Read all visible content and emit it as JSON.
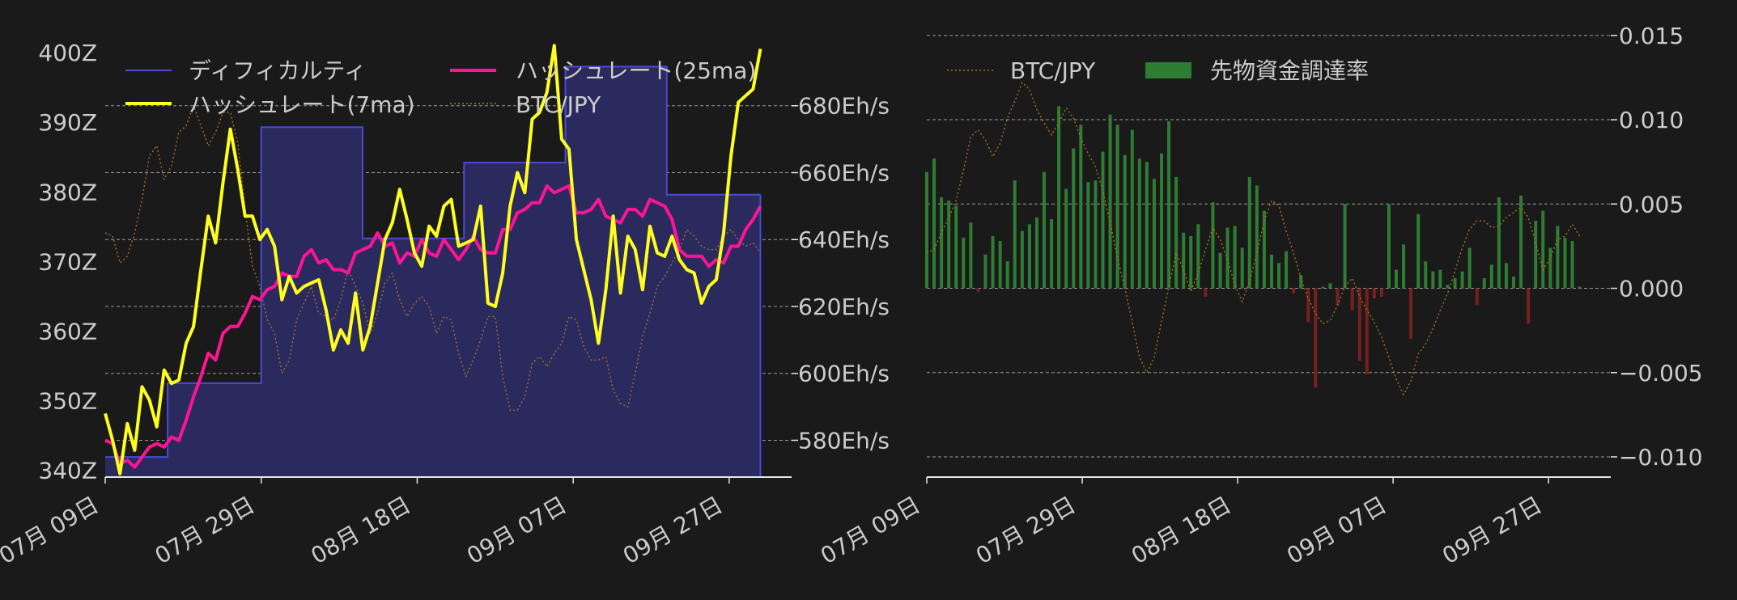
{
  "colors": {
    "background": "#1a1a1a",
    "text": "#cccccc",
    "difficulty_fill": "#2a2a5e",
    "difficulty_line": "#4a4ad8",
    "hashrate_7ma": "#ffff1f",
    "hashrate_25ma": "#ff1493",
    "btc_jpy": "#a87420",
    "funding_positive": "#2e7d32",
    "funding_negative": "#7a1f1f",
    "grid": "#bbbbbb",
    "axis": "#e6e6e6"
  },
  "chart_data": [
    {
      "type": "line",
      "x_start": "2024-07-09",
      "x_end": "2024-10-01",
      "x_ticks": [
        "07月 09日",
        "07月 29日",
        "08月 18日",
        "09月 07日",
        "09月 27日"
      ],
      "x_tick_dates": [
        "2024-07-09",
        "2024-07-29",
        "2024-08-18",
        "2024-09-07",
        "2024-09-27"
      ],
      "xlim": [
        "2024-07-09",
        "2024-10-05"
      ],
      "y_left": {
        "label": "",
        "ylim": [
          339,
          402
        ],
        "ticks": [
          "340Z",
          "350Z",
          "360Z",
          "370Z",
          "380Z",
          "390Z",
          "400Z"
        ],
        "tick_values": [
          340,
          350,
          360,
          370,
          380,
          390,
          400
        ]
      },
      "y_right": {
        "label": "",
        "ylim": [
          569,
          700
        ],
        "ticks": [
          "580Eh/s",
          "600Eh/s",
          "620Eh/s",
          "640Eh/s",
          "660Eh/s",
          "680Eh/s"
        ],
        "tick_values": [
          580,
          600,
          620,
          640,
          660,
          680
        ]
      },
      "grid": "horizontal dashed on right axis ticks",
      "legend": {
        "placement": "top",
        "entries": [
          "ディフィカルティ",
          "ハッシュレート(25ma)",
          "ハッシュレート(7ma)",
          "BTC/JPY"
        ]
      },
      "series": [
        {
          "name": "ディフィカルティ",
          "kind": "step-area",
          "axis": "left",
          "steps": [
            {
              "from": "2024-07-09",
              "value": 341.9
            },
            {
              "from": "2024-07-17",
              "value": 352.5
            },
            {
              "from": "2024-07-29",
              "value": 389.3
            },
            {
              "from": "2024-08-11",
              "value": 373.3
            },
            {
              "from": "2024-08-24",
              "value": 384.2
            },
            {
              "from": "2024-09-06",
              "value": 398.0
            },
            {
              "from": "2024-09-19",
              "value": 379.6
            },
            {
              "from": "2024-10-01",
              "value": 379.6
            }
          ]
        },
        {
          "name": "ハッシュレート(7ma)",
          "axis": "right",
          "values": [
            588,
            580,
            570,
            585,
            577,
            596,
            592,
            584,
            601,
            597,
            598,
            609,
            614,
            631,
            647,
            639,
            657,
            673,
            661,
            647,
            647,
            640,
            643,
            638,
            622,
            629,
            624,
            626,
            627,
            628,
            619,
            607,
            613,
            609,
            624,
            607,
            614,
            627,
            640,
            645,
            655,
            646,
            636,
            632,
            644,
            641,
            650,
            652,
            638,
            639,
            640,
            650,
            621,
            620,
            630,
            650,
            660,
            654,
            676,
            678,
            684,
            698,
            670,
            667,
            640,
            631,
            622,
            609,
            625,
            647,
            624,
            641,
            637,
            625,
            644,
            636,
            635,
            641,
            634,
            631,
            630,
            621,
            626,
            628,
            642,
            665,
            681,
            683,
            685,
            697
          ]
        },
        {
          "name": "ハッシュレート(25ma)",
          "axis": "right",
          "values": [
            580,
            579,
            573,
            574,
            572,
            575,
            578,
            579,
            578,
            581,
            580,
            586,
            593,
            599,
            606,
            604,
            612,
            614,
            614,
            618,
            623,
            622,
            625,
            626,
            630,
            629,
            629,
            635,
            637,
            633,
            634,
            631,
            631,
            630,
            636,
            637,
            638,
            642,
            638,
            639,
            633,
            636,
            635,
            640,
            636,
            635,
            640,
            637,
            634,
            637,
            641,
            637,
            636,
            636,
            643,
            643,
            648,
            649,
            651,
            651,
            656,
            654,
            655,
            656,
            648,
            648,
            649,
            652,
            647,
            646,
            645,
            649,
            649,
            647,
            652,
            651,
            650,
            646,
            637,
            635,
            635,
            635,
            632,
            634,
            633,
            638,
            638,
            643,
            646,
            650
          ]
        },
        {
          "name": "BTC/JPY",
          "kind": "dotted",
          "axis": "right",
          "values": [
            642,
            641,
            633,
            635,
            642,
            652,
            665,
            668,
            658,
            662,
            672,
            674,
            680,
            674,
            668,
            672,
            678,
            678,
            669,
            649,
            632,
            626,
            616,
            612,
            600,
            604,
            616,
            621,
            626,
            618,
            617,
            616,
            622,
            631,
            626,
            621,
            612,
            618,
            627,
            630,
            622,
            617,
            621,
            623,
            620,
            612,
            617,
            616,
            606,
            599,
            604,
            610,
            617,
            617,
            599,
            589,
            589,
            593,
            603,
            605,
            602,
            606,
            609,
            617,
            616,
            608,
            604,
            604,
            605,
            595,
            591,
            590,
            600,
            611,
            618,
            626,
            629,
            633,
            637,
            643,
            641,
            638,
            637,
            637,
            641,
            643,
            640,
            638,
            639,
            636
          ]
        }
      ]
    },
    {
      "type": "bar",
      "x_start": "2024-07-09",
      "x_end": "2024-10-01",
      "x_ticks": [
        "07月 09日",
        "07月 29日",
        "08月 18日",
        "09月 07日",
        "09月 27日"
      ],
      "x_tick_dates": [
        "2024-07-09",
        "2024-07-29",
        "2024-08-18",
        "2024-09-07",
        "2024-09-27"
      ],
      "xlim": [
        "2024-07-09",
        "2024-10-05"
      ],
      "y_right": {
        "label": "",
        "ylim": [
          -0.0112,
          0.0148
        ],
        "ticks": [
          "−0.010",
          "−0.005",
          "0.000",
          "0.005",
          "0.010",
          "0.015"
        ],
        "tick_values": [
          -0.01,
          -0.005,
          0.0,
          0.005,
          0.01,
          0.015
        ]
      },
      "grid": "horizontal dashed on y ticks",
      "legend": {
        "placement": "top-left",
        "entries": [
          "BTC/JPY",
          "先物資金調達率"
        ]
      },
      "series": [
        {
          "name": "先物資金調達率",
          "kind": "bar",
          "values": [
            0.0069,
            0.0077,
            0.0054,
            0.0052,
            0.0049,
            0.003,
            0.0039,
            -0.0002,
            0.002,
            0.0031,
            0.0028,
            0.0016,
            0.0064,
            0.0034,
            0.0038,
            0.0042,
            0.0069,
            0.0041,
            0.0108,
            0.0059,
            0.0083,
            0.0097,
            0.0063,
            0.0064,
            0.0081,
            0.0103,
            0.0097,
            0.0079,
            0.0094,
            0.0077,
            0.0075,
            0.0065,
            0.008,
            0.0099,
            0.0066,
            0.0033,
            0.0031,
            0.0038,
            -0.0005,
            0.0051,
            0.0021,
            0.0036,
            0.0037,
            0.0024,
            0.0066,
            0.0061,
            0.0046,
            0.002,
            0.0015,
            0.0022,
            -0.0003,
            0.0008,
            -0.002,
            -0.0059,
            0.0001,
            0.0003,
            -0.001,
            0.005,
            -0.0013,
            -0.0043,
            -0.0051,
            -0.0006,
            -0.0005,
            0.005,
            0.0011,
            0.0026,
            -0.003,
            0.0044,
            0.0016,
            0.001,
            0.0011,
            0.0002,
            0.0006,
            0.001,
            0.0024,
            -0.001,
            0.0006,
            0.0014,
            0.0054,
            0.0015,
            0.0007,
            0.0055,
            -0.0021,
            0.004,
            0.0046,
            0.0024,
            0.0037,
            0.003,
            0.0028,
            0.0001
          ],
          "negative_values_shown": "red bars"
        },
        {
          "name": "BTC/JPY",
          "kind": "dotted",
          "values": [
            0.0021,
            0.0023,
            0.0033,
            0.0042,
            0.0052,
            0.007,
            0.009,
            0.0094,
            0.0088,
            0.0078,
            0.0086,
            0.0101,
            0.0111,
            0.0122,
            0.0118,
            0.0106,
            0.0098,
            0.0091,
            0.0098,
            0.0107,
            0.0101,
            0.0089,
            0.008,
            0.0072,
            0.0058,
            0.0039,
            0.0018,
            0.0,
            -0.002,
            -0.0041,
            -0.005,
            -0.0041,
            -0.002,
            0.0001,
            0.0021,
            0.0011,
            -0.0002,
            0.0009,
            0.0023,
            0.0036,
            0.0029,
            0.0017,
            0.0002,
            -0.0008,
            0.0004,
            0.0021,
            0.004,
            0.0052,
            0.0049,
            0.0034,
            0.0021,
            0.0006,
            -0.0006,
            -0.0015,
            -0.0021,
            -0.0019,
            -0.001,
            0.0001,
            0.0006,
            -0.0005,
            -0.0013,
            -0.002,
            -0.0029,
            -0.0041,
            -0.0054,
            -0.0063,
            -0.0055,
            -0.0039,
            -0.0033,
            -0.0024,
            -0.0013,
            -0.0003,
            0.001,
            0.0024,
            0.0035,
            0.004,
            0.004,
            0.0036,
            0.0037,
            0.0042,
            0.0045,
            0.0048,
            0.0042,
            0.0027,
            0.0011,
            0.0018,
            0.0029,
            0.0031,
            0.0038,
            0.0031
          ]
        }
      ]
    }
  ]
}
